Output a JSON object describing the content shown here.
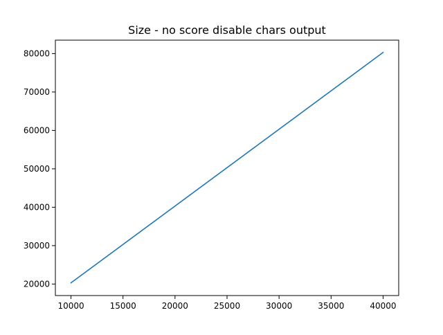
{
  "chart_data": {
    "type": "line",
    "title": "Size - no score disable chars output",
    "xlabel": "",
    "ylabel": "",
    "xlim": [
      8500,
      41500
    ],
    "ylim": [
      17000,
      83500
    ],
    "x_ticks": [
      10000,
      15000,
      20000,
      25000,
      30000,
      35000,
      40000
    ],
    "y_ticks": [
      20000,
      30000,
      40000,
      50000,
      60000,
      70000,
      80000
    ],
    "grid": false,
    "legend": "none",
    "series": [
      {
        "color": "#1f77b4",
        "points": [
          {
            "x": 10000,
            "y": 20300
          },
          {
            "x": 40000,
            "y": 80300
          }
        ]
      }
    ]
  }
}
